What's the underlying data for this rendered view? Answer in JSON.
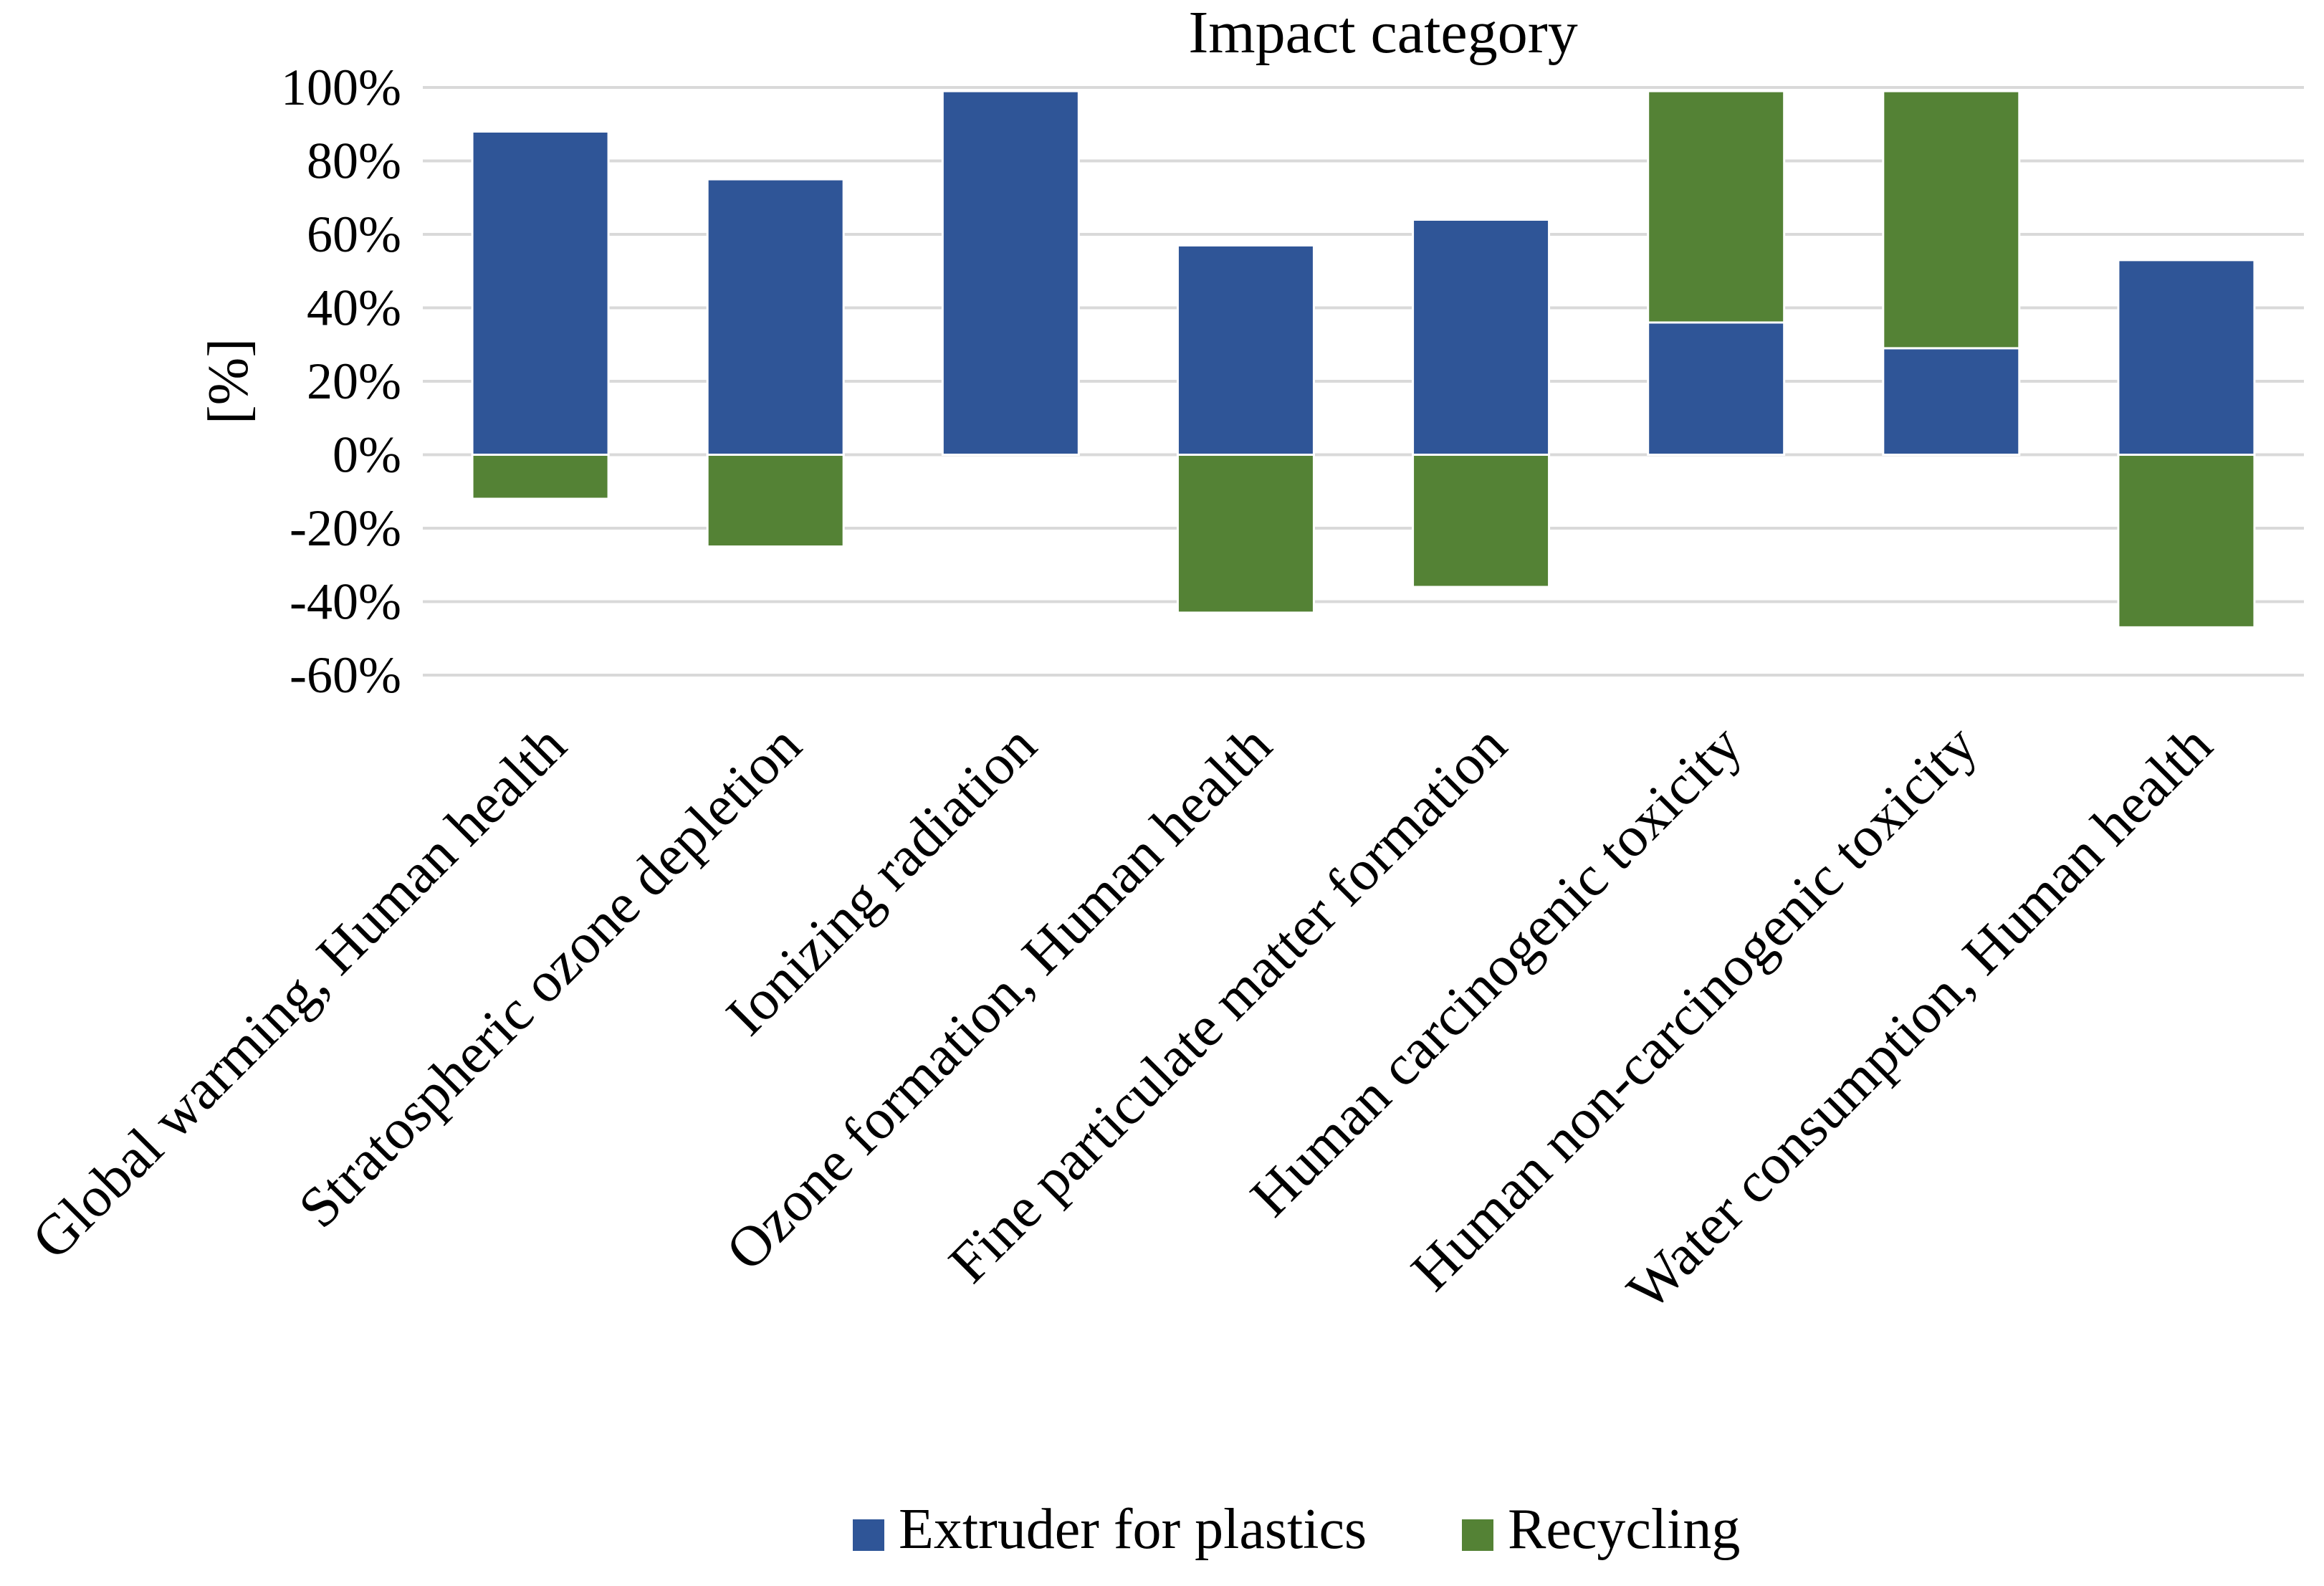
{
  "chart_data": {
    "type": "bar",
    "stacked": true,
    "title": "Impact category",
    "xlabel": "",
    "ylabel": "[%]",
    "ylim": [
      -60,
      100
    ],
    "yticks": [
      100,
      80,
      60,
      40,
      20,
      0,
      -20,
      -40,
      -60
    ],
    "ytick_labels": [
      "100%",
      "80%",
      "60%",
      "40%",
      "20%",
      "0%",
      "-20%",
      "-40%",
      "-60%"
    ],
    "grid": true,
    "legend_position": "bottom-center",
    "categories": [
      "Global warming, Human health",
      "Stratospheric ozone depletion",
      "Ionizing radiation",
      "Ozone formation, Human health",
      "Fine particulate matter formation",
      "Human carcinogenic toxicity",
      "Human non-carcinogenic toxicity",
      "Water consumption, Human health"
    ],
    "series": [
      {
        "name": "Extruder for plastics",
        "color": "#2F5597",
        "values": [
          88,
          75,
          99,
          57,
          64,
          36,
          29,
          53
        ]
      },
      {
        "name": "Recycling",
        "color": "#548235",
        "values": [
          -12,
          -25,
          0,
          -43,
          -36,
          63,
          70,
          -47
        ]
      }
    ]
  }
}
